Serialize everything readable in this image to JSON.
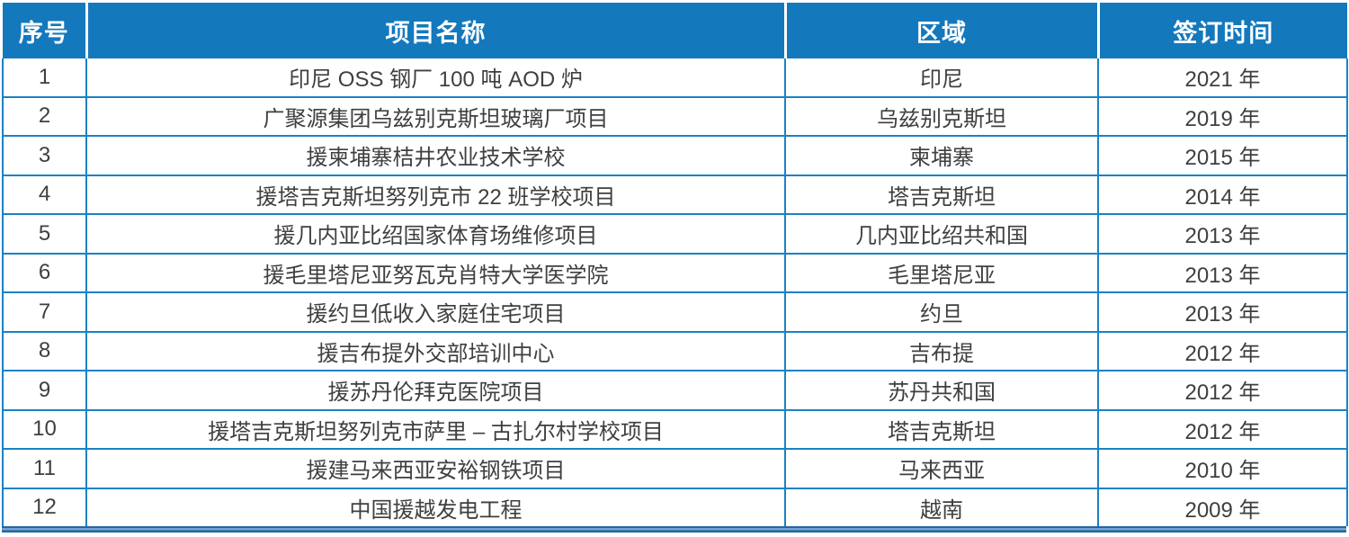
{
  "table": {
    "headers": [
      "序号",
      "项目名称",
      "区域",
      "签订时间"
    ],
    "rows": [
      {
        "no": "1",
        "project": "印尼 OSS 钢厂 100 吨 AOD 炉",
        "region": "印尼",
        "year": "2021 年"
      },
      {
        "no": "2",
        "project": "广聚源集团乌兹别克斯坦玻璃厂项目",
        "region": "乌兹别克斯坦",
        "year": "2019 年"
      },
      {
        "no": "3",
        "project": "援柬埔寨桔井农业技术学校",
        "region": "柬埔寨",
        "year": "2015 年"
      },
      {
        "no": "4",
        "project": "援塔吉克斯坦努列克市 22 班学校项目",
        "region": "塔吉克斯坦",
        "year": "2014 年"
      },
      {
        "no": "5",
        "project": "援几内亚比绍国家体育场维修项目",
        "region": "几内亚比绍共和国",
        "year": "2013 年"
      },
      {
        "no": "6",
        "project": "援毛里塔尼亚努瓦克肖特大学医学院",
        "region": "毛里塔尼亚",
        "year": "2013 年"
      },
      {
        "no": "7",
        "project": "援约旦低收入家庭住宅项目",
        "region": "约旦",
        "year": "2013 年"
      },
      {
        "no": "8",
        "project": "援吉布提外交部培训中心",
        "region": "吉布提",
        "year": "2012 年"
      },
      {
        "no": "9",
        "project": "援苏丹伦拜克医院项目",
        "region": "苏丹共和国",
        "year": "2012 年"
      },
      {
        "no": "10",
        "project": "援塔吉克斯坦努列克市萨里 – 古扎尔村学校项目",
        "region": "塔吉克斯坦",
        "year": "2012 年"
      },
      {
        "no": "11",
        "project": "援建马来西亚安裕钢铁项目",
        "region": "马来西亚",
        "year": "2010 年"
      },
      {
        "no": "12",
        "project": "中国援越发电工程",
        "region": "越南",
        "year": "2009 年"
      }
    ]
  },
  "colors": {
    "header_bg": "#1478BD",
    "grid_line": "#1B82C5",
    "bottom_band_dark": "#24669F",
    "bottom_band_light": "#6FA3D4",
    "body_text": "#3F3F3F",
    "header_text": "#FFFFFF"
  }
}
